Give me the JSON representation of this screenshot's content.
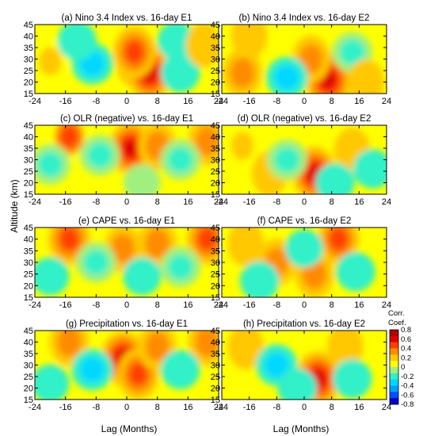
{
  "figure": {
    "ylabel": "Altitude (km)",
    "xlabel": "Lag (Months)",
    "colorbar": {
      "title_line1": "Corr.",
      "title_line2": "Coef.",
      "ticks": [
        "0.8",
        "0.6",
        "0.4",
        "0.2",
        "0",
        "-0.2",
        "-0.4",
        "-0.6",
        "-0.8"
      ],
      "range": [
        -0.8,
        0.8
      ],
      "colors": [
        "#0000c8",
        "#0050ff",
        "#00a0ff",
        "#00d8ff",
        "#30f0c8",
        "#a0f080",
        "#ffff00",
        "#ffc800",
        "#ff8c00",
        "#ff4000",
        "#e00000",
        "#b00000"
      ]
    }
  },
  "chart_data": [
    {
      "type": "heatmap",
      "title": "(a) Nino 3.4 Index vs. 16-day E1",
      "xlabel": "",
      "ylabel": "Altitude (km)",
      "xlim": [
        -24,
        24
      ],
      "ylim": [
        15,
        45
      ],
      "xticks": [
        "-24",
        "-16",
        "-8",
        "0",
        "8",
        "16",
        "24"
      ],
      "yticks": [
        "15",
        "20",
        "25",
        "30",
        "35",
        "40",
        "45"
      ],
      "z_range": [
        -0.8,
        0.8
      ],
      "features": [
        {
          "x": 3,
          "y": 29,
          "value": 0.6
        },
        {
          "x": 6,
          "y": 24,
          "value": 0.6
        },
        {
          "x": 2,
          "y": 33,
          "value": 0.5
        },
        {
          "x": -20,
          "y": 29,
          "value": 0.25
        },
        {
          "x": -9,
          "y": 28,
          "value": -0.3
        },
        {
          "x": -13,
          "y": 38,
          "value": -0.2
        },
        {
          "x": 14,
          "y": 24,
          "value": -0.2
        },
        {
          "x": 13,
          "y": 38,
          "value": -0.15
        },
        {
          "x": 20,
          "y": 36,
          "value": 0.15
        }
      ]
    },
    {
      "type": "heatmap",
      "title": "(b) Nino 3.4 Index vs. 16-day E2",
      "xlabel": "",
      "ylabel": "",
      "xlim": [
        -24,
        24
      ],
      "ylim": [
        15,
        45
      ],
      "xticks": [
        "-24",
        "-16",
        "-8",
        "0",
        "8",
        "16",
        "24"
      ],
      "yticks": [
        "15",
        "20",
        "25",
        "30",
        "35",
        "40",
        "45"
      ],
      "z_range": [
        -0.8,
        0.8
      ],
      "features": [
        {
          "x": 7,
          "y": 21,
          "value": 0.65
        },
        {
          "x": -18,
          "y": 24,
          "value": 0.35
        },
        {
          "x": 2,
          "y": 30,
          "value": 0.3
        },
        {
          "x": -5,
          "y": 22,
          "value": -0.3
        },
        {
          "x": 14,
          "y": 33,
          "value": -0.25
        },
        {
          "x": -16,
          "y": 40,
          "value": 0.2
        },
        {
          "x": 18,
          "y": 20,
          "value": 0.2
        }
      ]
    },
    {
      "type": "heatmap",
      "title": "(c) OLR (negative) vs. 16-day E1",
      "xlabel": "",
      "ylabel": "",
      "xlim": [
        -24,
        24
      ],
      "ylim": [
        15,
        45
      ],
      "xticks": [
        "-24",
        "-16",
        "-8",
        "0",
        "8",
        "16",
        "24"
      ],
      "yticks": [
        "15",
        "20",
        "25",
        "30",
        "35",
        "40",
        "45"
      ],
      "z_range": [
        -0.8,
        0.8
      ],
      "features": [
        {
          "x": 1,
          "y": 35,
          "value": 0.55
        },
        {
          "x": -15,
          "y": 40,
          "value": 0.4
        },
        {
          "x": 8,
          "y": 36,
          "value": 0.3
        },
        {
          "x": 21,
          "y": 38,
          "value": 0.3
        },
        {
          "x": -20,
          "y": 28,
          "value": -0.25
        },
        {
          "x": -7,
          "y": 32,
          "value": -0.25
        },
        {
          "x": 14,
          "y": 30,
          "value": -0.25
        },
        {
          "x": 4,
          "y": 20,
          "value": -0.1
        }
      ]
    },
    {
      "type": "heatmap",
      "title": "(d) OLR (negative) vs. 16-day E2",
      "xlabel": "",
      "ylabel": "",
      "xlim": [
        -24,
        24
      ],
      "ylim": [
        15,
        45
      ],
      "xticks": [
        "-24",
        "-16",
        "-8",
        "0",
        "8",
        "16",
        "24"
      ],
      "yticks": [
        "15",
        "20",
        "25",
        "30",
        "35",
        "40",
        "45"
      ],
      "z_range": [
        -0.8,
        0.8
      ],
      "features": [
        {
          "x": 3,
          "y": 24,
          "value": 0.6
        },
        {
          "x": -18,
          "y": 36,
          "value": 0.25
        },
        {
          "x": -10,
          "y": 24,
          "value": 0.2
        },
        {
          "x": 14,
          "y": 34,
          "value": 0.2
        },
        {
          "x": -5,
          "y": 30,
          "value": -0.25
        },
        {
          "x": 9,
          "y": 20,
          "value": -0.2
        },
        {
          "x": 20,
          "y": 26,
          "value": -0.2
        }
      ]
    },
    {
      "type": "heatmap",
      "title": "(e) CAPE vs. 16-day E1",
      "xlabel": "",
      "ylabel": "",
      "xlim": [
        -24,
        24
      ],
      "ylim": [
        15,
        45
      ],
      "xticks": [
        "-24",
        "-16",
        "-8",
        "0",
        "8",
        "16",
        "24"
      ],
      "yticks": [
        "15",
        "20",
        "25",
        "30",
        "35",
        "40",
        "45"
      ],
      "z_range": [
        -0.8,
        0.8
      ],
      "features": [
        {
          "x": -15,
          "y": 40,
          "value": 0.5
        },
        {
          "x": 21,
          "y": 40,
          "value": 0.45
        },
        {
          "x": 8,
          "y": 38,
          "value": 0.35
        },
        {
          "x": -1,
          "y": 36,
          "value": 0.3
        },
        {
          "x": -8,
          "y": 30,
          "value": -0.25
        },
        {
          "x": 14,
          "y": 28,
          "value": -0.25
        },
        {
          "x": -20,
          "y": 24,
          "value": -0.15
        },
        {
          "x": 4,
          "y": 24,
          "value": -0.15
        }
      ]
    },
    {
      "type": "heatmap",
      "title": "(f) CAPE vs. 16-day E2",
      "xlabel": "",
      "ylabel": "",
      "xlim": [
        -24,
        24
      ],
      "ylim": [
        15,
        45
      ],
      "xticks": [
        "-24",
        "-16",
        "-8",
        "0",
        "8",
        "16",
        "24"
      ],
      "yticks": [
        "15",
        "20",
        "25",
        "30",
        "35",
        "40",
        "45"
      ],
      "z_range": [
        -0.8,
        0.8
      ],
      "features": [
        {
          "x": 10,
          "y": 40,
          "value": 0.45
        },
        {
          "x": 3,
          "y": 25,
          "value": 0.35
        },
        {
          "x": -8,
          "y": 30,
          "value": 0.3
        },
        {
          "x": -17,
          "y": 38,
          "value": 0.2
        },
        {
          "x": -13,
          "y": 22,
          "value": -0.2
        },
        {
          "x": 15,
          "y": 26,
          "value": -0.2
        },
        {
          "x": 0,
          "y": 36,
          "value": -0.15
        }
      ]
    },
    {
      "type": "heatmap",
      "title": "(g) Precipitation vs. 16-day E1",
      "xlabel": "Lag (Months)",
      "ylabel": "",
      "xlim": [
        -24,
        24
      ],
      "ylim": [
        15,
        45
      ],
      "xticks": [
        "-24",
        "-16",
        "-8",
        "0",
        "8",
        "16",
        "24"
      ],
      "yticks": [
        "15",
        "20",
        "25",
        "30",
        "35",
        "40",
        "45"
      ],
      "z_range": [
        -0.8,
        0.8
      ],
      "features": [
        {
          "x": -1,
          "y": 33,
          "value": 0.6
        },
        {
          "x": 3,
          "y": 26,
          "value": 0.45
        },
        {
          "x": -15,
          "y": 40,
          "value": 0.35
        },
        {
          "x": 8,
          "y": 38,
          "value": 0.3
        },
        {
          "x": 21,
          "y": 40,
          "value": 0.3
        },
        {
          "x": -9,
          "y": 28,
          "value": -0.3
        },
        {
          "x": 14,
          "y": 28,
          "value": -0.2
        },
        {
          "x": -20,
          "y": 22,
          "value": -0.15
        }
      ]
    },
    {
      "type": "heatmap",
      "title": "(h) Precipitation vs. 16-day E2",
      "xlabel": "Lag (Months)",
      "ylabel": "",
      "xlim": [
        -24,
        24
      ],
      "ylim": [
        15,
        45
      ],
      "xticks": [
        "-24",
        "-16",
        "-8",
        "0",
        "8",
        "16",
        "24"
      ],
      "yticks": [
        "15",
        "20",
        "25",
        "30",
        "35",
        "40",
        "45"
      ],
      "z_range": [
        -0.8,
        0.8
      ],
      "features": [
        {
          "x": 4,
          "y": 24,
          "value": 0.65
        },
        {
          "x": -17,
          "y": 38,
          "value": 0.2
        },
        {
          "x": 12,
          "y": 38,
          "value": 0.2
        },
        {
          "x": -8,
          "y": 30,
          "value": -0.3
        },
        {
          "x": 14,
          "y": 24,
          "value": -0.2
        },
        {
          "x": -2,
          "y": 20,
          "value": -0.2
        }
      ]
    }
  ]
}
